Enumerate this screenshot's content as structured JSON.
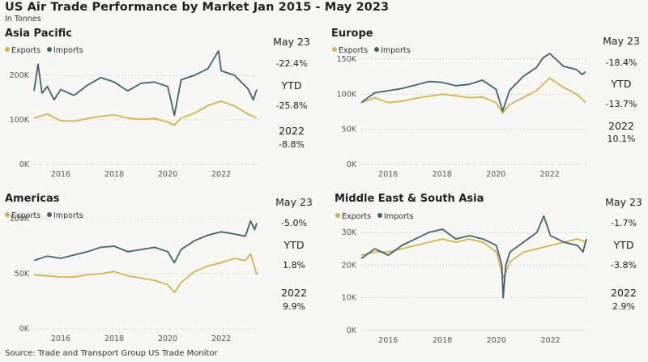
{
  "title": "US Air Trade Performance by Market Jan 2015 - May 2023",
  "subtitle": "In Tonnes",
  "source": "Source: Trade and Transport Group US Trade Monitor",
  "colors": {
    "exports": "#d4b34f",
    "imports": "#3e6470",
    "grid": "#d5d3cd",
    "axis_text": "#555555"
  },
  "legend": {
    "exports": "Exports",
    "imports": "Imports"
  },
  "chart_data": [
    {
      "type": "line",
      "title": "Asia Pacific",
      "xlim": [
        2015,
        2023.42
      ],
      "ylim": [
        0,
        260000
      ],
      "yticks": [
        0,
        100000,
        200000
      ],
      "ytick_labels": [
        "0K",
        "100K",
        "200K"
      ],
      "xticks": [
        2016,
        2018,
        2020,
        2022
      ],
      "xtick_labels": [
        "2016",
        "2018",
        "2020",
        "2022"
      ],
      "series": [
        {
          "name": "Exports",
          "x": [
            2015.0,
            2015.5,
            2016.0,
            2016.5,
            2017.0,
            2017.5,
            2018.0,
            2018.5,
            2019.0,
            2019.5,
            2020.0,
            2020.25,
            2020.5,
            2021.0,
            2021.5,
            2022.0,
            2022.5,
            2023.0,
            2023.33
          ],
          "values": [
            104000,
            113000,
            98000,
            97000,
            103000,
            108000,
            111000,
            104000,
            101000,
            103000,
            95000,
            88000,
            104000,
            115000,
            132000,
            142000,
            131000,
            113000,
            104000
          ]
        },
        {
          "name": "Imports",
          "x": [
            2015.0,
            2015.15,
            2015.3,
            2015.5,
            2015.75,
            2016.0,
            2016.5,
            2017.0,
            2017.5,
            2018.0,
            2018.5,
            2019.0,
            2019.5,
            2020.0,
            2020.25,
            2020.5,
            2021.0,
            2021.5,
            2021.9,
            2022.0,
            2022.5,
            2023.0,
            2023.2,
            2023.33
          ],
          "values": [
            165000,
            225000,
            160000,
            175000,
            145000,
            168000,
            155000,
            178000,
            195000,
            185000,
            165000,
            182000,
            185000,
            175000,
            110000,
            190000,
            200000,
            215000,
            255000,
            210000,
            200000,
            170000,
            145000,
            168000
          ]
        }
      ],
      "stats": {
        "month_label": "May 23",
        "month_change": "-22.4%",
        "ytd_label": "YTD",
        "ytd_change": "-25.8%",
        "year_label": "2022",
        "year_change": "-8.8%"
      }
    },
    {
      "type": "line",
      "title": "Europe",
      "xlim": [
        2015,
        2023.42
      ],
      "ylim": [
        0,
        165000
      ],
      "yticks": [
        0,
        50000,
        100000,
        150000
      ],
      "ytick_labels": [
        "0K",
        "50K",
        "100K",
        "150K"
      ],
      "xticks": [
        2016,
        2018,
        2020,
        2022
      ],
      "xtick_labels": [
        "2016",
        "2018",
        "2020",
        "2022"
      ],
      "series": [
        {
          "name": "Exports",
          "x": [
            2015.0,
            2015.5,
            2016.0,
            2016.5,
            2017.0,
            2017.5,
            2018.0,
            2018.5,
            2019.0,
            2019.5,
            2020.0,
            2020.25,
            2020.5,
            2021.0,
            2021.5,
            2022.0,
            2022.5,
            2023.0,
            2023.33
          ],
          "values": [
            88000,
            95000,
            88000,
            90000,
            94000,
            97000,
            100000,
            98000,
            95000,
            96000,
            88000,
            73000,
            85000,
            95000,
            105000,
            123000,
            110000,
            100000,
            88000
          ]
        },
        {
          "name": "Imports",
          "x": [
            2015.0,
            2015.5,
            2016.0,
            2016.5,
            2017.0,
            2017.5,
            2018.0,
            2018.5,
            2019.0,
            2019.5,
            2020.0,
            2020.25,
            2020.5,
            2021.0,
            2021.5,
            2021.75,
            2022.0,
            2022.5,
            2023.0,
            2023.2,
            2023.33
          ],
          "values": [
            88000,
            102000,
            105000,
            108000,
            113000,
            118000,
            117000,
            112000,
            114000,
            120000,
            107000,
            76000,
            105000,
            125000,
            138000,
            152000,
            158000,
            140000,
            135000,
            128000,
            132000
          ]
        }
      ],
      "stats": {
        "month_label": "May 23",
        "month_change": "-18.4%",
        "ytd_label": "YTD",
        "ytd_change": "-13.7%",
        "year_label": "2022",
        "year_change": "10.1%"
      }
    },
    {
      "type": "line",
      "title": "Americas",
      "xlim": [
        2015,
        2023.42
      ],
      "ylim": [
        0,
        100000
      ],
      "yticks": [
        0,
        50000,
        100000
      ],
      "ytick_labels": [
        "0K",
        "50K",
        "100K"
      ],
      "xticks": [
        2016,
        2018,
        2020,
        2022
      ],
      "xtick_labels": [
        "2016",
        "2018",
        "2020",
        "2022"
      ],
      "series": [
        {
          "name": "Exports",
          "x": [
            2015.0,
            2015.5,
            2016.0,
            2016.5,
            2017.0,
            2017.5,
            2018.0,
            2018.5,
            2019.0,
            2019.5,
            2020.0,
            2020.25,
            2020.5,
            2021.0,
            2021.5,
            2022.0,
            2022.5,
            2022.9,
            2023.1,
            2023.33
          ],
          "values": [
            49000,
            48000,
            47000,
            47000,
            49000,
            50000,
            52000,
            48000,
            46000,
            44000,
            40000,
            33000,
            42000,
            52000,
            57000,
            60000,
            64000,
            62000,
            68000,
            49000
          ]
        },
        {
          "name": "Imports",
          "x": [
            2015.0,
            2015.5,
            2016.0,
            2016.5,
            2017.0,
            2017.5,
            2018.0,
            2018.5,
            2019.0,
            2019.5,
            2020.0,
            2020.25,
            2020.5,
            2021.0,
            2021.5,
            2022.0,
            2022.5,
            2022.9,
            2023.1,
            2023.25,
            2023.33
          ],
          "values": [
            62000,
            66000,
            64000,
            67000,
            70000,
            74000,
            75000,
            70000,
            72000,
            74000,
            70000,
            60000,
            72000,
            80000,
            85000,
            88000,
            86000,
            84000,
            98000,
            90000,
            96000
          ]
        }
      ],
      "stats": {
        "month_label": "May 23",
        "month_change": "-5.0%",
        "ytd_label": "YTD",
        "ytd_change": "1.8%",
        "year_label": "2022",
        "year_change": "9.9%"
      }
    },
    {
      "type": "line",
      "title": "Middle East & South Asia",
      "xlim": [
        2015,
        2023.42
      ],
      "ylim": [
        0,
        36000
      ],
      "yticks": [
        0,
        10000,
        20000,
        30000
      ],
      "ytick_labels": [
        "0K",
        "10K",
        "20K",
        "30K"
      ],
      "xticks": [
        2016,
        2018,
        2020,
        2022
      ],
      "xtick_labels": [
        "2016",
        "2018",
        "2020",
        "2022"
      ],
      "series": [
        {
          "name": "Exports",
          "x": [
            2015.0,
            2015.5,
            2016.0,
            2016.5,
            2017.0,
            2017.5,
            2018.0,
            2018.5,
            2019.0,
            2019.5,
            2020.0,
            2020.25,
            2020.5,
            2021.0,
            2021.5,
            2022.0,
            2022.5,
            2023.0,
            2023.33
          ],
          "values": [
            23000,
            24000,
            24000,
            25000,
            26000,
            27000,
            28000,
            27000,
            28000,
            27000,
            24000,
            16000,
            21000,
            24000,
            25000,
            26000,
            27000,
            28000,
            27000
          ]
        },
        {
          "name": "Imports",
          "x": [
            2015.0,
            2015.5,
            2016.0,
            2016.5,
            2017.0,
            2017.5,
            2018.0,
            2018.5,
            2019.0,
            2019.5,
            2020.0,
            2020.2,
            2020.25,
            2020.35,
            2020.5,
            2021.0,
            2021.5,
            2021.75,
            2022.0,
            2022.5,
            2023.0,
            2023.2,
            2023.33
          ],
          "values": [
            22000,
            25000,
            23000,
            26000,
            28000,
            30000,
            31000,
            28000,
            29000,
            28000,
            26000,
            20000,
            10000,
            20000,
            24000,
            27000,
            30000,
            35000,
            29000,
            27000,
            26000,
            24000,
            28000
          ]
        }
      ],
      "stats": {
        "month_label": "May 23",
        "month_change": "-1.7%",
        "ytd_label": "YTD",
        "ytd_change": "-3.8%",
        "year_label": "2022",
        "year_change": "2.9%"
      }
    }
  ]
}
